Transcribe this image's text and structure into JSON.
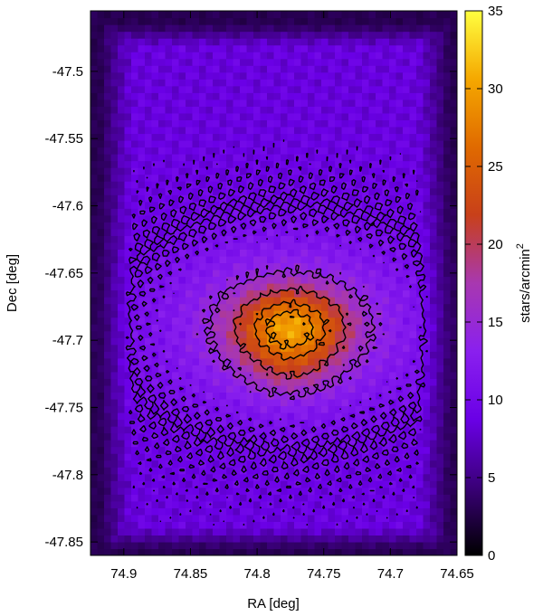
{
  "chart_data": {
    "type": "heatmap",
    "title": "",
    "xlabel": "RA [deg]",
    "ylabel": "Dec [deg]",
    "colorbar_label": "stars/arcmin",
    "colorbar_label_exponent": "2",
    "xlim": [
      74.925,
      74.65
    ],
    "ylim": [
      -47.86,
      -47.455
    ],
    "x_ticks": [
      74.9,
      74.85,
      74.8,
      74.75,
      74.7,
      74.65
    ],
    "x_tick_labels": [
      "74.9",
      "74.85",
      "74.8",
      "74.75",
      "74.7",
      "74.65"
    ],
    "y_ticks": [
      -47.5,
      -47.55,
      -47.6,
      -47.65,
      -47.7,
      -47.75,
      -47.8,
      -47.85
    ],
    "y_tick_labels": [
      "-47.5",
      "-47.55",
      "-47.6",
      "-47.65",
      "-47.7",
      "-47.75",
      "-47.8",
      "-47.85"
    ],
    "colorbar_range": [
      0,
      35
    ],
    "colorbar_ticks": [
      0,
      5,
      10,
      15,
      20,
      25,
      30,
      35
    ],
    "colorbar_tick_labels": [
      "0",
      "5",
      "10",
      "15",
      "20",
      "25",
      "30",
      "35"
    ],
    "colormap": [
      "#000000",
      "#3a0078",
      "#6a00e6",
      "#8a20ee",
      "#a838b0",
      "#c8401a",
      "#e06a00",
      "#f5a800",
      "#ffff40"
    ],
    "cluster_center": [
      74.775,
      -47.69
    ],
    "peak_density": 30,
    "background_density": 8.5,
    "contour_levels": [
      10,
      15,
      20,
      25,
      28
    ],
    "grid": false,
    "legend": "none"
  }
}
